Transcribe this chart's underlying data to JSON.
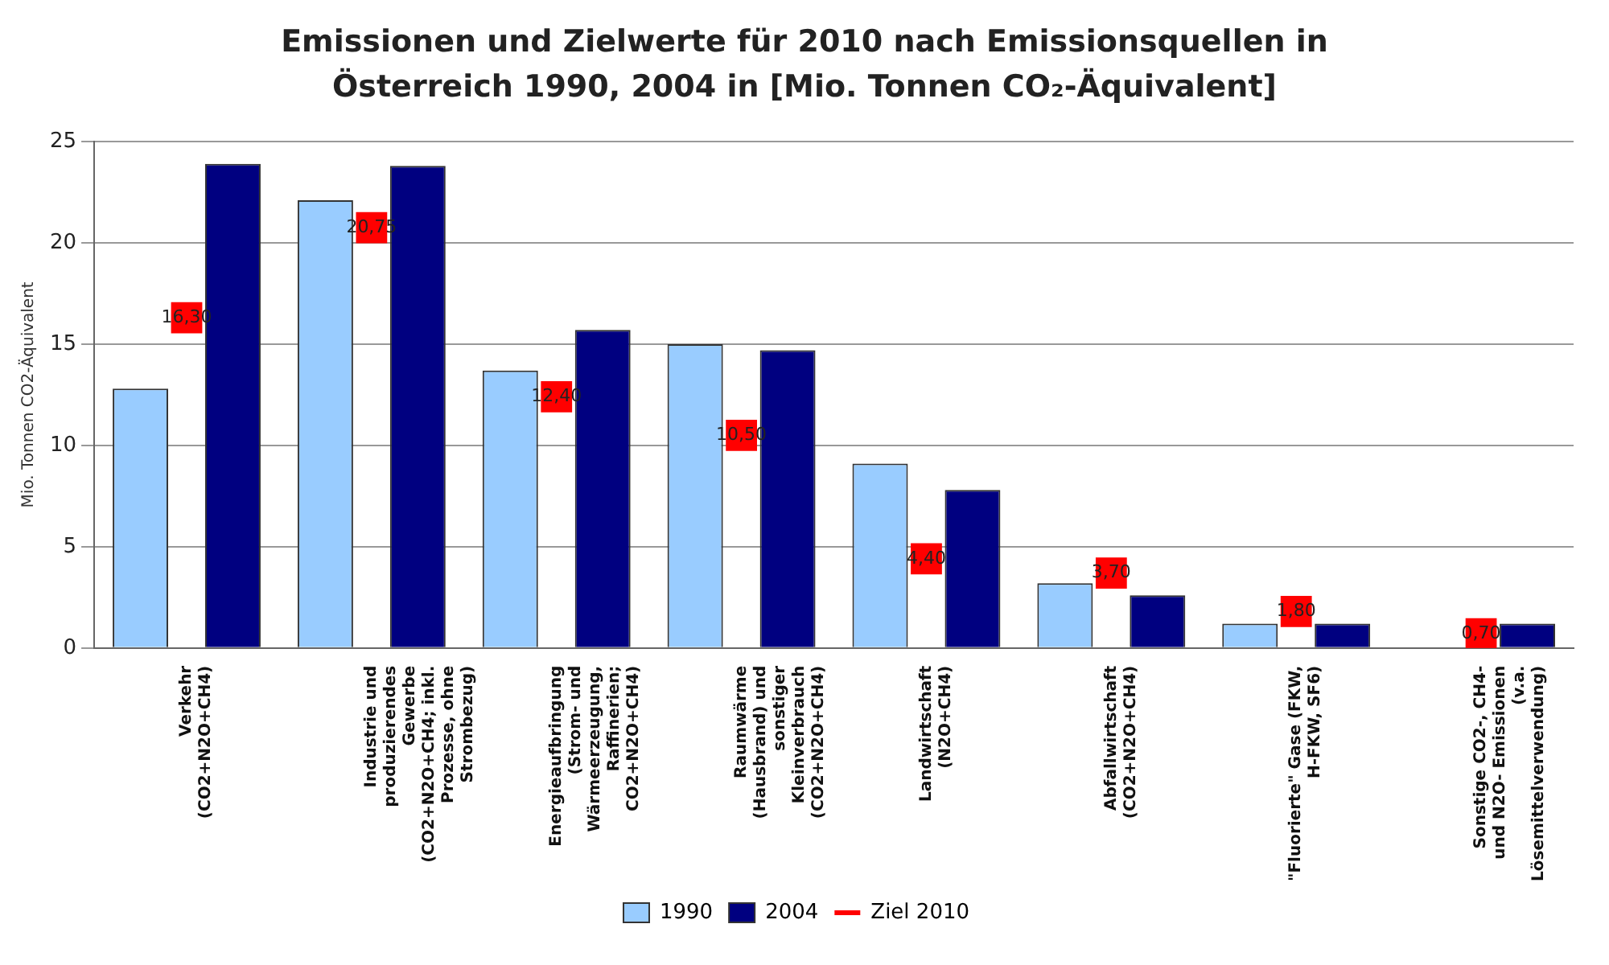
{
  "chart_data": {
    "type": "bar",
    "title": "Emissionen und Zielwerte für 2010 nach Emissionsquellen in Österreich 1990, 2004 in [Mio. Tonnen CO₂-Äquivalent]",
    "ylabel": "Mio. Tonnen CO2-Äquivalent",
    "categories": [
      "Verkehr\n(CO2+N2O+CH4)",
      "Industrie und\nproduzierendes\nGewerbe\n(CO2+N2O+CH4; inkl.\nProzesse, ohne\nStrombezug)",
      "Energieaufbringung\n(Strom- und\nWärmeerzeugung,\nRaffinerien;\nCO2+N2O+CH4)",
      "Raumwärme\n(Hausbrand) und\nsonstiger\nKleinverbrauch\n(CO2+N2O+CH4)",
      "Landwirtschaft\n(N2O+CH4)",
      "Abfallwirtschaft\n(CO2+N2O+CH4)",
      "\"Fluorierte\" Gase (FKW,\nH-FKW, SF6)",
      "Sonstige CO2-, CH4-\nund N2O- Emissionen\n(v.a.\nLösemittelverwendung)"
    ],
    "series": [
      {
        "name": "1990",
        "color": "#99ccff",
        "values": [
          12.8,
          22.1,
          13.7,
          15.0,
          9.1,
          3.2,
          1.2,
          null
        ]
      },
      {
        "name": "2004",
        "color": "#000080",
        "values": [
          23.9,
          23.8,
          15.7,
          14.7,
          7.8,
          2.6,
          1.2,
          1.2
        ]
      },
      {
        "name": "Ziel 2010",
        "type": "scatter",
        "color": "#ff0000",
        "marker": "square",
        "x": [
          "Verkehr\n(CO2+N2O+CH4)",
          "Industrie und\nproduzierendes\nGewerbe\n(CO2+N2O+CH4; inkl.\nProzesse, ohne\nStrombezug)",
          "Energieaufbringung\n(Strom- und\nWärmeerzeugung,\nRaffinerien;\nCO2+N2O+CH4)",
          "Raumwärme\n(Hausbrand) und\nsonstiger\nKleinverbrauch\n(CO2+N2O+CH4)",
          "Landwirtschaft\n(N2O+CH4)",
          "Abfallwirtschaft\n(CO2+N2O+CH4)",
          "\"Fluorierte\" Gase (FKW,\nH-FKW, SF6)",
          "Sonstige CO2-, CH4-\nund N2O- Emissionen\n(v.a.\nLösemittelverwendung)"
        ],
        "values": [
          16.3,
          20.75,
          12.4,
          10.5,
          4.4,
          3.7,
          1.8,
          0.7
        ],
        "value_labels": [
          "16,30",
          "20,75",
          "12,40",
          "10,50",
          "4,40",
          "3,70",
          "1,80",
          "0,70"
        ]
      }
    ],
    "ylim": [
      0,
      25
    ],
    "yticks": [
      0,
      5,
      10,
      15,
      20,
      25
    ],
    "grid": "y",
    "legend": "bottom"
  }
}
